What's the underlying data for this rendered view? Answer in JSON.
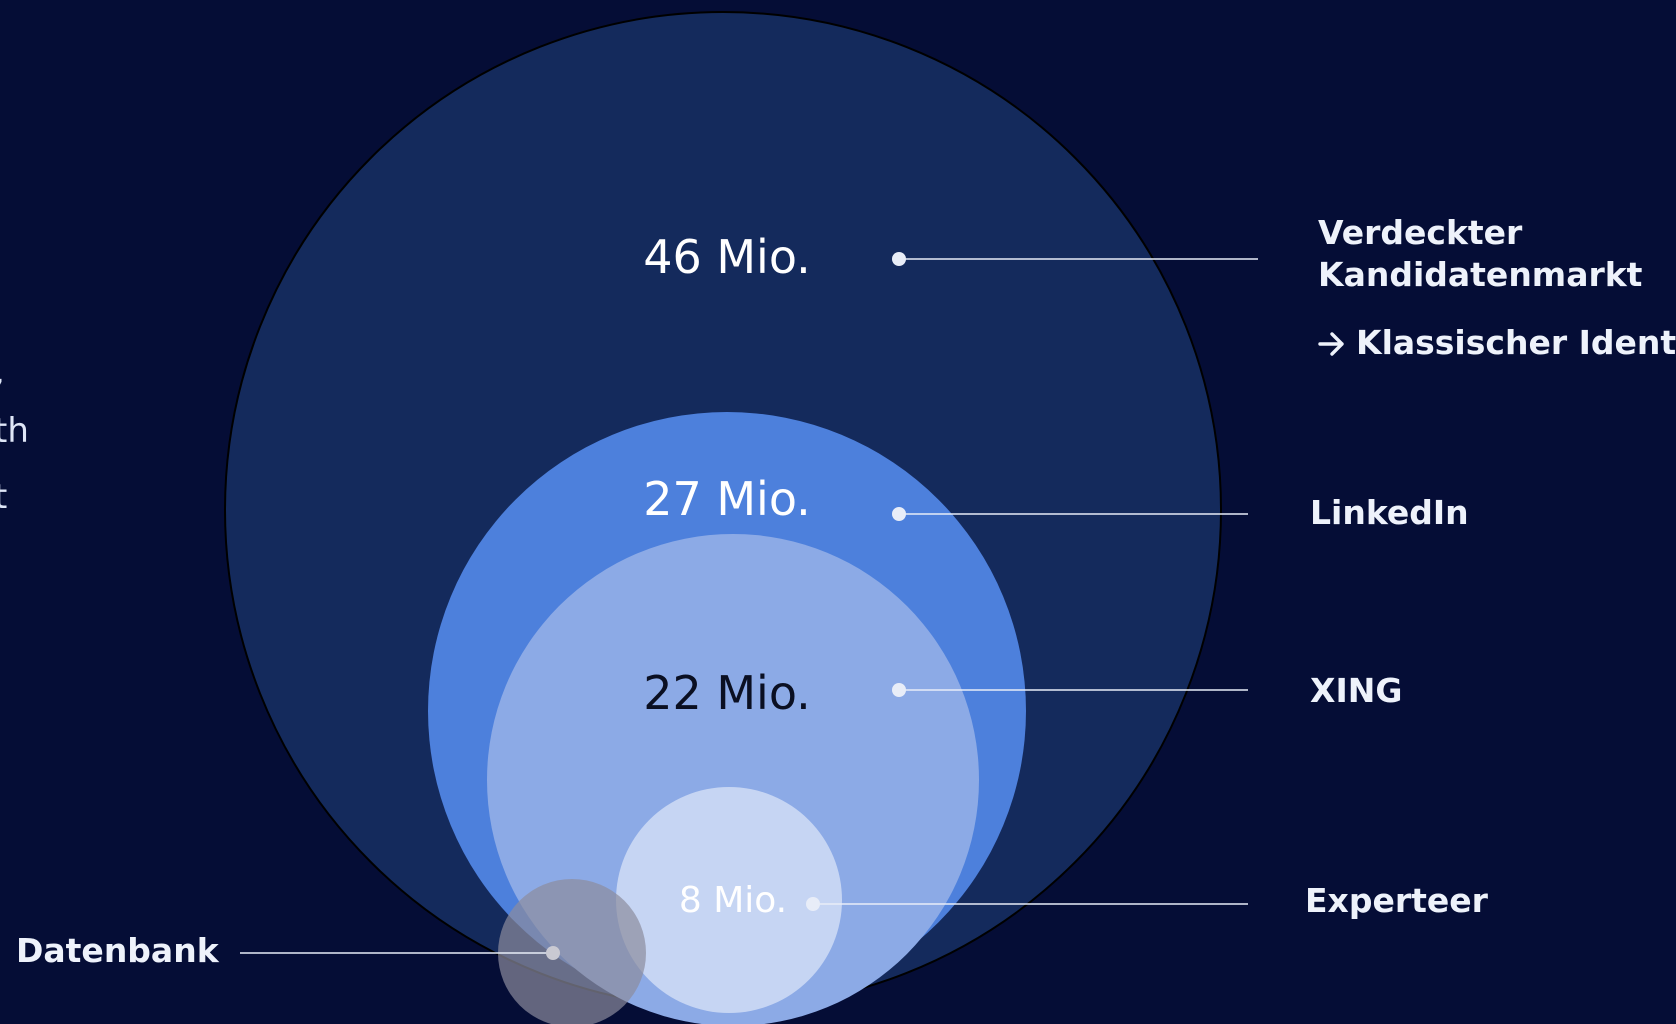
{
  "colors": {
    "background": "#050d36",
    "outer_circle": "#142a5c",
    "linkedin_circle": "#4d80dc",
    "xing_circle": "#8caae6",
    "experteer_circle": "#c6d5f3",
    "datenbank_circle": "#8c8c9c",
    "leader_line": "#e8edf8"
  },
  "left_edge_text": [
    ",",
    "th",
    "t"
  ],
  "values": {
    "verdeckt": "46 Mio.",
    "linkedin": "27 Mio.",
    "xing": "22 Mio.",
    "experteer": "8 Mio."
  },
  "labels": {
    "verdeckt_line1": "Verdeckter",
    "verdeckt_line2": "Kandidatenmarkt",
    "verdeckt_sub": "Klassischer Ident",
    "linkedin": "LinkedIn",
    "xing": "XING",
    "experteer": "Experteer",
    "datenbank": "Datenbank"
  },
  "icons": {
    "arrow": "right-arrow-icon"
  }
}
